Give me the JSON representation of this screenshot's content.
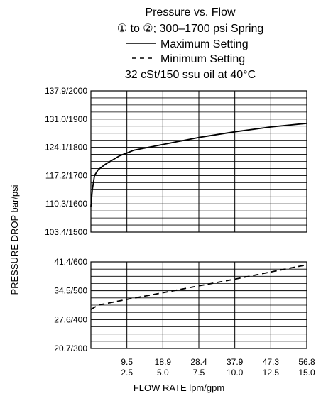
{
  "chart_data": {
    "type": "line",
    "title_lines": [
      "Pressure vs. Flow",
      "① to ②; 300–1700 psi Spring",
      "Maximum Setting",
      "Minimum Setting",
      "32 cSt/150 ssu oil at 40°C"
    ],
    "xlabel": "FLOW RATE lpm/gpm",
    "ylabel": "PRESSURE DROP bar/psi",
    "x_ticks_lpm": [
      "9.5",
      "18.9",
      "28.4",
      "37.9",
      "47.3",
      "56.8"
    ],
    "x_ticks_gpm": [
      "2.5",
      "5.0",
      "7.5",
      "10.0",
      "12.5",
      "15.0"
    ],
    "xlim_gpm": [
      0,
      15
    ],
    "upper_panel": {
      "ylim_psi": [
        1500,
        2000
      ],
      "y_ticks": [
        "137.9/2000",
        "131.0/1900",
        "124.1/1800",
        "117.2/1700",
        "110.3/1600",
        "103.4/1500"
      ],
      "y_tick_values_psi": [
        2000,
        1900,
        1800,
        1700,
        1600,
        1500
      ]
    },
    "lower_panel": {
      "ylim_psi": [
        300,
        600
      ],
      "y_ticks": [
        "41.4/600",
        "34.5/500",
        "27.6/400",
        "20.7/300"
      ],
      "y_tick_values_psi": [
        600,
        500,
        400,
        300
      ]
    },
    "series": [
      {
        "name": "Maximum Setting",
        "style": "solid",
        "panel": "upper",
        "x_gpm": [
          0,
          0.1,
          0.25,
          0.5,
          1.0,
          1.5,
          2.0,
          2.5,
          3.0,
          5.0,
          7.5,
          10.0,
          12.5,
          15.0
        ],
        "y_psi": [
          1590,
          1650,
          1700,
          1720,
          1740,
          1755,
          1770,
          1780,
          1790,
          1810,
          1835,
          1855,
          1872,
          1885
        ]
      },
      {
        "name": "Minimum Setting",
        "style": "dashed",
        "panel": "lower",
        "x_gpm": [
          0,
          0.5,
          2.5,
          5.0,
          7.5,
          10.0,
          12.5,
          15.0
        ],
        "y_psi": [
          435,
          450,
          470,
          493,
          517,
          540,
          565,
          590
        ]
      }
    ]
  }
}
